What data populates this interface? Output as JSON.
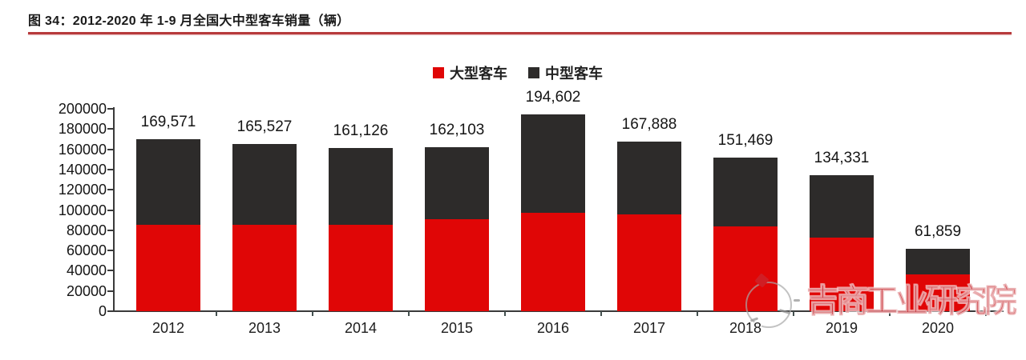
{
  "title": {
    "text": "图 34：2012-2020 年 1-9 月全国大中型客车销量（辆）"
  },
  "colors": {
    "large_bus": "#e00606",
    "medium_bus": "#2d2b2a",
    "title_underline": "#b73a3c",
    "watermark_red": "#c5212a",
    "axis": "#3a3a3a",
    "label_text": "#151515"
  },
  "legend": {
    "items": [
      {
        "label": "大型客车",
        "swatch": "large_bus"
      },
      {
        "label": "中型客车",
        "swatch": "medium_bus"
      }
    ]
  },
  "watermark": {
    "text": "吉商工业研究院",
    "logo": "circle-seal-logo"
  },
  "chart_data": {
    "type": "bar",
    "stacked": true,
    "title": "图 34：2012-2020 年 1-9 月全国大中型客车销量（辆）",
    "categories": [
      "2012",
      "2013",
      "2014",
      "2015",
      "2016",
      "2017",
      "2018",
      "2019",
      "2020"
    ],
    "series": [
      {
        "name": "大型客车",
        "color_key": "large_bus",
        "values_est": [
          85500,
          85000,
          85000,
          91000,
          97000,
          95500,
          84000,
          72500,
          36000
        ]
      },
      {
        "name": "中型客车",
        "color_key": "medium_bus",
        "values_est": [
          84071,
          80527,
          76126,
          71103,
          97602,
          72388,
          67469,
          61831,
          25859
        ]
      }
    ],
    "totals": [
      169571,
      165527,
      161126,
      162103,
      194602,
      167888,
      151469,
      134331,
      61859
    ],
    "total_labels": [
      "169,571",
      "165,527",
      "161,126",
      "162,103",
      "194,602",
      "167,888",
      "151,469",
      "134,331",
      "61,859"
    ],
    "ylim": [
      0,
      200000
    ],
    "yticks": [
      {
        "value": 0,
        "label": "0"
      },
      {
        "value": 20000,
        "label": "20000"
      },
      {
        "value": 40000,
        "label": "40000"
      },
      {
        "value": 60000,
        "label": "60000"
      },
      {
        "value": 80000,
        "label": "80000"
      },
      {
        "value": 100000,
        "label": "100000"
      },
      {
        "value": 120000,
        "label": "120000"
      },
      {
        "value": 140000,
        "label": "140000"
      },
      {
        "value": 160000,
        "label": "160000"
      },
      {
        "value": 180000,
        "label": "180000"
      },
      {
        "value": 200000,
        "label": "200000"
      }
    ],
    "legend_position": "top-center",
    "grid": false
  }
}
